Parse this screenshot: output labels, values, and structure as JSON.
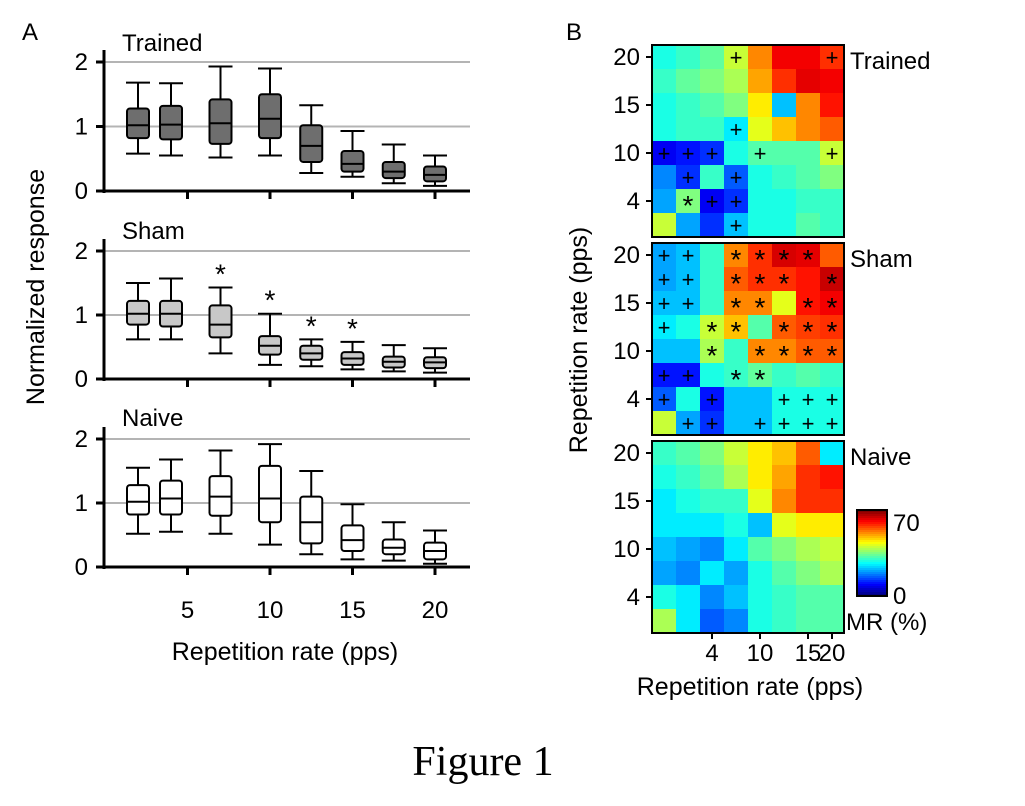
{
  "figure": {
    "caption": "Figure 1",
    "panel_a_letter": "A",
    "panel_b_letter": "B"
  },
  "chart_data": [
    {
      "type": "box",
      "panel": "A",
      "xlabel": "Repetition rate (pps)",
      "ylabel": "Normalized response",
      "xtick_labels": [
        "5",
        "10",
        "15",
        "20"
      ],
      "xtick_values": [
        5,
        10,
        15,
        20
      ],
      "ytick_labels": [
        "0",
        "1",
        "2"
      ],
      "ytick_values": [
        0,
        1,
        2
      ],
      "ylim": [
        0,
        2.2
      ],
      "grid": "horizontal",
      "subplots": [
        {
          "name": "Trained",
          "fill": "#6e6e6e",
          "x": [
            2,
            4,
            7,
            10,
            12.5,
            15,
            17.5,
            20
          ],
          "boxes": [
            {
              "x": 2,
              "whislo": 0.58,
              "q1": 0.82,
              "med": 1.02,
              "q3": 1.28,
              "whishi": 1.68
            },
            {
              "x": 4,
              "whislo": 0.55,
              "q1": 0.8,
              "med": 1.03,
              "q3": 1.32,
              "whishi": 1.67
            },
            {
              "x": 7,
              "whislo": 0.52,
              "q1": 0.73,
              "med": 1.05,
              "q3": 1.42,
              "whishi": 1.93
            },
            {
              "x": 10,
              "whislo": 0.55,
              "q1": 0.82,
              "med": 1.12,
              "q3": 1.5,
              "whishi": 1.9
            },
            {
              "x": 12.5,
              "whislo": 0.28,
              "q1": 0.45,
              "med": 0.7,
              "q3": 1.02,
              "whishi": 1.33
            },
            {
              "x": 15,
              "whislo": 0.22,
              "q1": 0.3,
              "med": 0.42,
              "q3": 0.62,
              "whishi": 0.93
            },
            {
              "x": 17.5,
              "whislo": 0.12,
              "q1": 0.2,
              "med": 0.3,
              "q3": 0.45,
              "whishi": 0.72
            },
            {
              "x": 20,
              "whislo": 0.08,
              "q1": 0.15,
              "med": 0.25,
              "q3": 0.38,
              "whishi": 0.55
            }
          ],
          "asterisks_at_x": []
        },
        {
          "name": "Sham",
          "fill": "#c8c8c8",
          "x": [
            2,
            4,
            7,
            10,
            12.5,
            15,
            17.5,
            20
          ],
          "boxes": [
            {
              "x": 2,
              "whislo": 0.62,
              "q1": 0.85,
              "med": 1.02,
              "q3": 1.22,
              "whishi": 1.5
            },
            {
              "x": 4,
              "whislo": 0.62,
              "q1": 0.82,
              "med": 1.02,
              "q3": 1.22,
              "whishi": 1.57
            },
            {
              "x": 7,
              "whislo": 0.4,
              "q1": 0.65,
              "med": 0.85,
              "q3": 1.15,
              "whishi": 1.43
            },
            {
              "x": 10,
              "whislo": 0.22,
              "q1": 0.38,
              "med": 0.52,
              "q3": 0.67,
              "whishi": 1.02
            },
            {
              "x": 12.5,
              "whislo": 0.2,
              "q1": 0.3,
              "med": 0.4,
              "q3": 0.52,
              "whishi": 0.62
            },
            {
              "x": 15,
              "whislo": 0.15,
              "q1": 0.22,
              "med": 0.32,
              "q3": 0.42,
              "whishi": 0.58
            },
            {
              "x": 17.5,
              "whislo": 0.12,
              "q1": 0.18,
              "med": 0.27,
              "q3": 0.35,
              "whishi": 0.53
            },
            {
              "x": 20,
              "whislo": 0.1,
              "q1": 0.17,
              "med": 0.26,
              "q3": 0.34,
              "whishi": 0.48
            }
          ],
          "asterisks_at_x": [
            7,
            10,
            12.5,
            15
          ]
        },
        {
          "name": "Naive",
          "fill": "#ffffff",
          "x": [
            2,
            4,
            7,
            10,
            12.5,
            15,
            17.5,
            20
          ],
          "boxes": [
            {
              "x": 2,
              "whislo": 0.52,
              "q1": 0.82,
              "med": 1.02,
              "q3": 1.28,
              "whishi": 1.55
            },
            {
              "x": 4,
              "whislo": 0.55,
              "q1": 0.82,
              "med": 1.07,
              "q3": 1.35,
              "whishi": 1.68
            },
            {
              "x": 7,
              "whislo": 0.52,
              "q1": 0.8,
              "med": 1.1,
              "q3": 1.42,
              "whishi": 1.82
            },
            {
              "x": 10,
              "whislo": 0.35,
              "q1": 0.7,
              "med": 1.07,
              "q3": 1.58,
              "whishi": 1.92
            },
            {
              "x": 12.5,
              "whislo": 0.2,
              "q1": 0.37,
              "med": 0.7,
              "q3": 1.1,
              "whishi": 1.5
            },
            {
              "x": 15,
              "whislo": 0.12,
              "q1": 0.25,
              "med": 0.42,
              "q3": 0.65,
              "whishi": 0.98
            },
            {
              "x": 17.5,
              "whislo": 0.1,
              "q1": 0.2,
              "med": 0.3,
              "q3": 0.43,
              "whishi": 0.7
            },
            {
              "x": 20,
              "whislo": 0.05,
              "q1": 0.12,
              "med": 0.25,
              "q3": 0.38,
              "whishi": 0.57
            }
          ],
          "asterisks_at_x": []
        }
      ]
    },
    {
      "type": "heatmap",
      "panel": "B",
      "xlabel": "Repetition rate (pps)",
      "ylabel": "Repetition rate (pps)",
      "xtick_labels": [
        "4",
        "10",
        "15",
        "20"
      ],
      "xtick_columns": [
        2,
        4,
        6,
        7
      ],
      "ytick_labels": [
        "4",
        "10",
        "15",
        "20"
      ],
      "ytick_rows": [
        6,
        4,
        2,
        0
      ],
      "colorbar": {
        "label": "MR (%)",
        "min": 0,
        "max": 70,
        "min_label": "0",
        "max_label": "70",
        "colormap": "jet"
      },
      "grid_size": 8,
      "subplots": [
        {
          "name": "Trained",
          "values_rows_top_to_bottom": [
            [
              28,
              30,
              33,
              40,
              52,
              62,
              62,
              58
            ],
            [
              30,
              33,
              35,
              38,
              50,
              58,
              63,
              62
            ],
            [
              28,
              30,
              32,
              35,
              45,
              22,
              52,
              60
            ],
            [
              28,
              30,
              30,
              25,
              42,
              48,
              52,
              55
            ],
            [
              8,
              10,
              12,
              28,
              32,
              32,
              32,
              40
            ],
            [
              18,
              12,
              30,
              15,
              28,
              30,
              32,
              35
            ],
            [
              20,
              35,
              8,
              12,
              28,
              28,
              30,
              30
            ],
            [
              40,
              20,
              12,
              22,
              28,
              28,
              32,
              30
            ]
          ],
          "plus_marks": [
            [
              0,
              3
            ],
            [
              0,
              7
            ],
            [
              3,
              3
            ],
            [
              4,
              0
            ],
            [
              4,
              1
            ],
            [
              4,
              2
            ],
            [
              4,
              4
            ],
            [
              4,
              7
            ],
            [
              5,
              1
            ],
            [
              5,
              3
            ],
            [
              6,
              2
            ],
            [
              6,
              3
            ],
            [
              7,
              3
            ]
          ],
          "asterisk_marks": [
            [
              6,
              1
            ]
          ]
        },
        {
          "name": "Sham",
          "values_rows_top_to_bottom": [
            [
              20,
              22,
              30,
              52,
              58,
              64,
              63,
              55
            ],
            [
              20,
              22,
              30,
              55,
              58,
              58,
              60,
              65
            ],
            [
              22,
              22,
              30,
              52,
              52,
              42,
              60,
              62
            ],
            [
              25,
              28,
              40,
              48,
              32,
              55,
              57,
              58
            ],
            [
              22,
              22,
              38,
              30,
              52,
              52,
              55,
              55
            ],
            [
              10,
              10,
              28,
              30,
              33,
              30,
              32,
              30
            ],
            [
              15,
              28,
              10,
              22,
              22,
              28,
              28,
              28
            ],
            [
              40,
              20,
              12,
              22,
              22,
              28,
              28,
              28
            ]
          ],
          "plus_marks": [
            [
              0,
              0
            ],
            [
              0,
              1
            ],
            [
              1,
              0
            ],
            [
              1,
              1
            ],
            [
              2,
              0
            ],
            [
              2,
              1
            ],
            [
              3,
              0
            ],
            [
              5,
              0
            ],
            [
              5,
              1
            ],
            [
              6,
              0
            ],
            [
              6,
              2
            ],
            [
              6,
              5
            ],
            [
              6,
              6
            ],
            [
              6,
              7
            ],
            [
              7,
              1
            ],
            [
              7,
              2
            ],
            [
              7,
              4
            ],
            [
              7,
              5
            ],
            [
              7,
              6
            ],
            [
              7,
              7
            ]
          ],
          "asterisk_marks": [
            [
              0,
              3
            ],
            [
              0,
              4
            ],
            [
              0,
              5
            ],
            [
              0,
              6
            ],
            [
              1,
              3
            ],
            [
              1,
              4
            ],
            [
              1,
              5
            ],
            [
              1,
              7
            ],
            [
              2,
              3
            ],
            [
              2,
              4
            ],
            [
              2,
              6
            ],
            [
              2,
              7
            ],
            [
              3,
              2
            ],
            [
              3,
              3
            ],
            [
              3,
              5
            ],
            [
              3,
              6
            ],
            [
              3,
              7
            ],
            [
              4,
              2
            ],
            [
              4,
              4
            ],
            [
              4,
              5
            ],
            [
              4,
              6
            ],
            [
              4,
              7
            ],
            [
              5,
              3
            ],
            [
              5,
              4
            ]
          ]
        },
        {
          "name": "Naive",
          "values_rows_top_to_bottom": [
            [
              30,
              32,
              35,
              40,
              45,
              48,
              55,
              25
            ],
            [
              28,
              30,
              33,
              38,
              45,
              50,
              58,
              60
            ],
            [
              25,
              28,
              30,
              30,
              42,
              52,
              58,
              58
            ],
            [
              25,
              25,
              25,
              28,
              22,
              42,
              45,
              45
            ],
            [
              22,
              20,
              18,
              25,
              32,
              35,
              38,
              40
            ],
            [
              20,
              18,
              25,
              20,
              28,
              32,
              35,
              38
            ],
            [
              28,
              25,
              18,
              22,
              28,
              30,
              32,
              32
            ],
            [
              38,
              25,
              15,
              18,
              28,
              30,
              32,
              32
            ]
          ],
          "plus_marks": [],
          "asterisk_marks": []
        }
      ]
    }
  ]
}
